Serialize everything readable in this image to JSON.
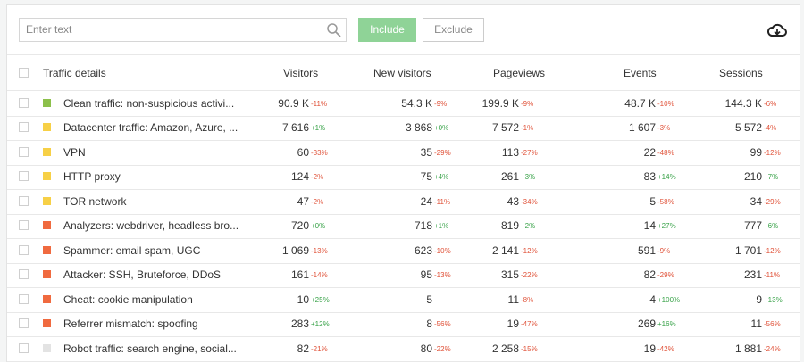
{
  "toolbar": {
    "search_placeholder": "Enter text",
    "include": "Include",
    "exclude": "Exclude"
  },
  "table": {
    "columns": [
      "Traffic details",
      "Visitors",
      "New visitors",
      "Pageviews",
      "Events",
      "Sessions"
    ],
    "rows": [
      {
        "label": "Clean traffic: non-suspicious activi...",
        "color": "#8cc04b",
        "cells": [
          {
            "value": "90.9 K",
            "change": "-11%"
          },
          {
            "value": "54.3 K",
            "change": "-9%"
          },
          {
            "value": "199.9 K",
            "change": "-9%"
          },
          {
            "value": "48.7 K",
            "change": "-10%"
          },
          {
            "value": "144.3 K",
            "change": "-6%"
          }
        ]
      },
      {
        "label": "Datacenter traffic: Amazon, Azure, ...",
        "color": "#f7d046",
        "cells": [
          {
            "value": "7 616",
            "change": "+1%"
          },
          {
            "value": "3 868",
            "change": "+0%"
          },
          {
            "value": "7 572",
            "change": "-1%"
          },
          {
            "value": "1 607",
            "change": "-3%"
          },
          {
            "value": "5 572",
            "change": "-4%"
          }
        ]
      },
      {
        "label": "VPN",
        "color": "#f7d046",
        "cells": [
          {
            "value": "60",
            "change": "-33%"
          },
          {
            "value": "35",
            "change": "-29%"
          },
          {
            "value": "113",
            "change": "-27%"
          },
          {
            "value": "22",
            "change": "-48%"
          },
          {
            "value": "99",
            "change": "-12%"
          }
        ]
      },
      {
        "label": "HTTP proxy",
        "color": "#f7d046",
        "cells": [
          {
            "value": "124",
            "change": "-2%"
          },
          {
            "value": "75",
            "change": "+4%"
          },
          {
            "value": "261",
            "change": "+3%"
          },
          {
            "value": "83",
            "change": "+14%"
          },
          {
            "value": "210",
            "change": "+7%"
          }
        ]
      },
      {
        "label": "TOR network",
        "color": "#f7d046",
        "cells": [
          {
            "value": "47",
            "change": "-2%"
          },
          {
            "value": "24",
            "change": "-11%"
          },
          {
            "value": "43",
            "change": "-34%"
          },
          {
            "value": "5",
            "change": "-58%"
          },
          {
            "value": "34",
            "change": "-29%"
          }
        ]
      },
      {
        "label": "Analyzers: webdriver, headless bro...",
        "color": "#f06a3f",
        "cells": [
          {
            "value": "720",
            "change": "+0%"
          },
          {
            "value": "718",
            "change": "+1%"
          },
          {
            "value": "819",
            "change": "+2%"
          },
          {
            "value": "14",
            "change": "+27%"
          },
          {
            "value": "777",
            "change": "+6%"
          }
        ]
      },
      {
        "label": "Spammer: email spam, UGC",
        "color": "#f06a3f",
        "cells": [
          {
            "value": "1 069",
            "change": "-13%"
          },
          {
            "value": "623",
            "change": "-10%"
          },
          {
            "value": "2 141",
            "change": "-12%"
          },
          {
            "value": "591",
            "change": "-9%"
          },
          {
            "value": "1 701",
            "change": "-12%"
          }
        ]
      },
      {
        "label": "Attacker: SSH, Bruteforce, DDoS",
        "color": "#f06a3f",
        "cells": [
          {
            "value": "161",
            "change": "-14%"
          },
          {
            "value": "95",
            "change": "-13%"
          },
          {
            "value": "315",
            "change": "-22%"
          },
          {
            "value": "82",
            "change": "-29%"
          },
          {
            "value": "231",
            "change": "-11%"
          }
        ]
      },
      {
        "label": "Cheat: cookie manipulation",
        "color": "#f06a3f",
        "cells": [
          {
            "value": "10",
            "change": "+25%"
          },
          {
            "value": "5"
          },
          {
            "value": "11",
            "change": "-8%"
          },
          {
            "value": "4",
            "change": "+100%"
          },
          {
            "value": "9",
            "change": "+13%"
          }
        ]
      },
      {
        "label": "Referrer mismatch: spoofing",
        "color": "#f06a3f",
        "cells": [
          {
            "value": "283",
            "change": "+12%"
          },
          {
            "value": "8",
            "change": "-56%"
          },
          {
            "value": "19",
            "change": "-47%"
          },
          {
            "value": "269",
            "change": "+16%"
          },
          {
            "value": "11",
            "change": "-56%"
          }
        ]
      },
      {
        "label": "Robot traffic: search engine, social...",
        "color": "#e3e3e3",
        "cells": [
          {
            "value": "82",
            "change": "-21%"
          },
          {
            "value": "80",
            "change": "-22%"
          },
          {
            "value": "2 258",
            "change": "-15%"
          },
          {
            "value": "19",
            "change": "-42%"
          },
          {
            "value": "1 881",
            "change": "-24%"
          }
        ]
      }
    ]
  }
}
